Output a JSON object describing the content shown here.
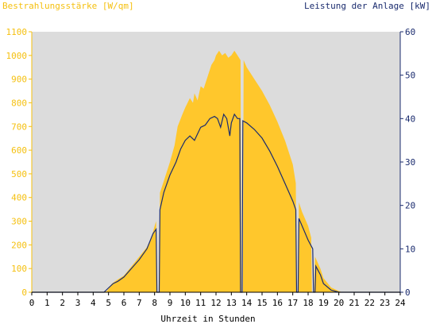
{
  "chart_data": {
    "type": "area",
    "title_left": "Bestrahlungsstärke [W/qm]",
    "title_right": "Leistung der Anlage [kW]",
    "xlabel": "Uhrzeit in Stunden",
    "x_ticks": [
      "0",
      "1",
      "2",
      "3",
      "4",
      "5",
      "6",
      "7",
      "8",
      "9",
      "10",
      "11",
      "12",
      "13",
      "14",
      "15",
      "16",
      "17",
      "18",
      "19",
      "20",
      "21",
      "22",
      "23",
      "24"
    ],
    "xlim": [
      0,
      24
    ],
    "y_left": {
      "lim": [
        0,
        1100
      ],
      "ticks": [
        "0",
        "100",
        "200",
        "300",
        "400",
        "500",
        "600",
        "700",
        "800",
        "900",
        "1000",
        "1100"
      ]
    },
    "y_right": {
      "lim": [
        0,
        60
      ],
      "ticks": [
        "0",
        "10",
        "20",
        "30",
        "40",
        "50",
        "60"
      ]
    },
    "grid": false,
    "colors": {
      "irradiance": "#ffc72c",
      "power": "#1a2b6e",
      "plot_background": "#dcdcdc",
      "left_axis": "#f5c010",
      "right_axis": "#1a2b6e"
    },
    "series": [
      {
        "axis": "left",
        "style": "area",
        "points": [
          [
            0,
            0
          ],
          [
            4.6,
            0
          ],
          [
            4.9,
            5
          ],
          [
            5.0,
            15
          ],
          [
            5.2,
            35
          ],
          [
            5.5,
            50
          ],
          [
            6.0,
            70
          ],
          [
            6.5,
            110
          ],
          [
            7.0,
            150
          ],
          [
            7.5,
            190
          ],
          [
            7.8,
            230
          ],
          [
            8.0,
            280
          ],
          [
            8.1,
            300
          ],
          [
            8.15,
            0
          ],
          [
            8.3,
            0
          ],
          [
            8.35,
            420
          ],
          [
            8.6,
            470
          ],
          [
            9.0,
            550
          ],
          [
            9.3,
            620
          ],
          [
            9.5,
            700
          ],
          [
            9.8,
            750
          ],
          [
            10.0,
            780
          ],
          [
            10.3,
            820
          ],
          [
            10.5,
            800
          ],
          [
            10.6,
            840
          ],
          [
            10.8,
            810
          ],
          [
            11.0,
            870
          ],
          [
            11.2,
            860
          ],
          [
            11.5,
            920
          ],
          [
            11.7,
            960
          ],
          [
            11.9,
            980
          ],
          [
            12.0,
            1000
          ],
          [
            12.2,
            1020
          ],
          [
            12.4,
            1000
          ],
          [
            12.6,
            1010
          ],
          [
            12.8,
            990
          ],
          [
            13.0,
            1000
          ],
          [
            13.2,
            1020
          ],
          [
            13.4,
            1000
          ],
          [
            13.6,
            980
          ],
          [
            13.65,
            0
          ],
          [
            13.75,
            0
          ],
          [
            13.8,
            980
          ],
          [
            14.0,
            950
          ],
          [
            14.5,
            900
          ],
          [
            15.0,
            850
          ],
          [
            15.5,
            790
          ],
          [
            16.0,
            720
          ],
          [
            16.5,
            640
          ],
          [
            17.0,
            540
          ],
          [
            17.2,
            460
          ],
          [
            17.25,
            0
          ],
          [
            17.35,
            0
          ],
          [
            17.4,
            380
          ],
          [
            17.6,
            340
          ],
          [
            18.0,
            280
          ],
          [
            18.2,
            230
          ],
          [
            18.25,
            0
          ],
          [
            18.4,
            0
          ],
          [
            18.45,
            150
          ],
          [
            18.8,
            100
          ],
          [
            19.0,
            60
          ],
          [
            19.5,
            20
          ],
          [
            20.0,
            5
          ],
          [
            20.2,
            0
          ],
          [
            24,
            0
          ]
        ]
      },
      {
        "axis": "right",
        "style": "line",
        "points": [
          [
            0,
            0
          ],
          [
            4.7,
            0
          ],
          [
            5.0,
            1
          ],
          [
            5.3,
            2
          ],
          [
            5.6,
            2.5
          ],
          [
            6.0,
            3.5
          ],
          [
            6.5,
            5.5
          ],
          [
            7.0,
            7.5
          ],
          [
            7.5,
            10
          ],
          [
            7.9,
            13.5
          ],
          [
            8.1,
            14.5
          ],
          [
            8.15,
            0
          ],
          [
            8.3,
            0
          ],
          [
            8.35,
            19
          ],
          [
            8.6,
            23
          ],
          [
            9.0,
            27
          ],
          [
            9.4,
            30
          ],
          [
            9.7,
            33
          ],
          [
            10.0,
            35
          ],
          [
            10.3,
            36
          ],
          [
            10.6,
            35
          ],
          [
            10.8,
            36.5
          ],
          [
            11.0,
            38
          ],
          [
            11.3,
            38.5
          ],
          [
            11.6,
            40
          ],
          [
            11.9,
            40.5
          ],
          [
            12.1,
            40
          ],
          [
            12.3,
            38
          ],
          [
            12.5,
            41
          ],
          [
            12.7,
            40
          ],
          [
            12.9,
            36
          ],
          [
            13.0,
            39
          ],
          [
            13.2,
            41
          ],
          [
            13.4,
            40
          ],
          [
            13.55,
            40
          ],
          [
            13.6,
            0
          ],
          [
            13.7,
            0
          ],
          [
            13.75,
            39.5
          ],
          [
            14.0,
            39
          ],
          [
            14.5,
            37.5
          ],
          [
            15.0,
            35.5
          ],
          [
            15.5,
            32.5
          ],
          [
            16.0,
            29
          ],
          [
            16.5,
            25
          ],
          [
            17.0,
            21
          ],
          [
            17.2,
            19
          ],
          [
            17.25,
            0
          ],
          [
            17.35,
            0
          ],
          [
            17.4,
            17
          ],
          [
            17.7,
            14.5
          ],
          [
            18.0,
            12
          ],
          [
            18.3,
            10
          ],
          [
            18.35,
            0
          ],
          [
            18.45,
            0
          ],
          [
            18.5,
            6
          ],
          [
            18.8,
            4
          ],
          [
            19.0,
            2
          ],
          [
            19.5,
            0.5
          ],
          [
            20.0,
            0
          ],
          [
            24,
            0
          ]
        ]
      }
    ]
  }
}
